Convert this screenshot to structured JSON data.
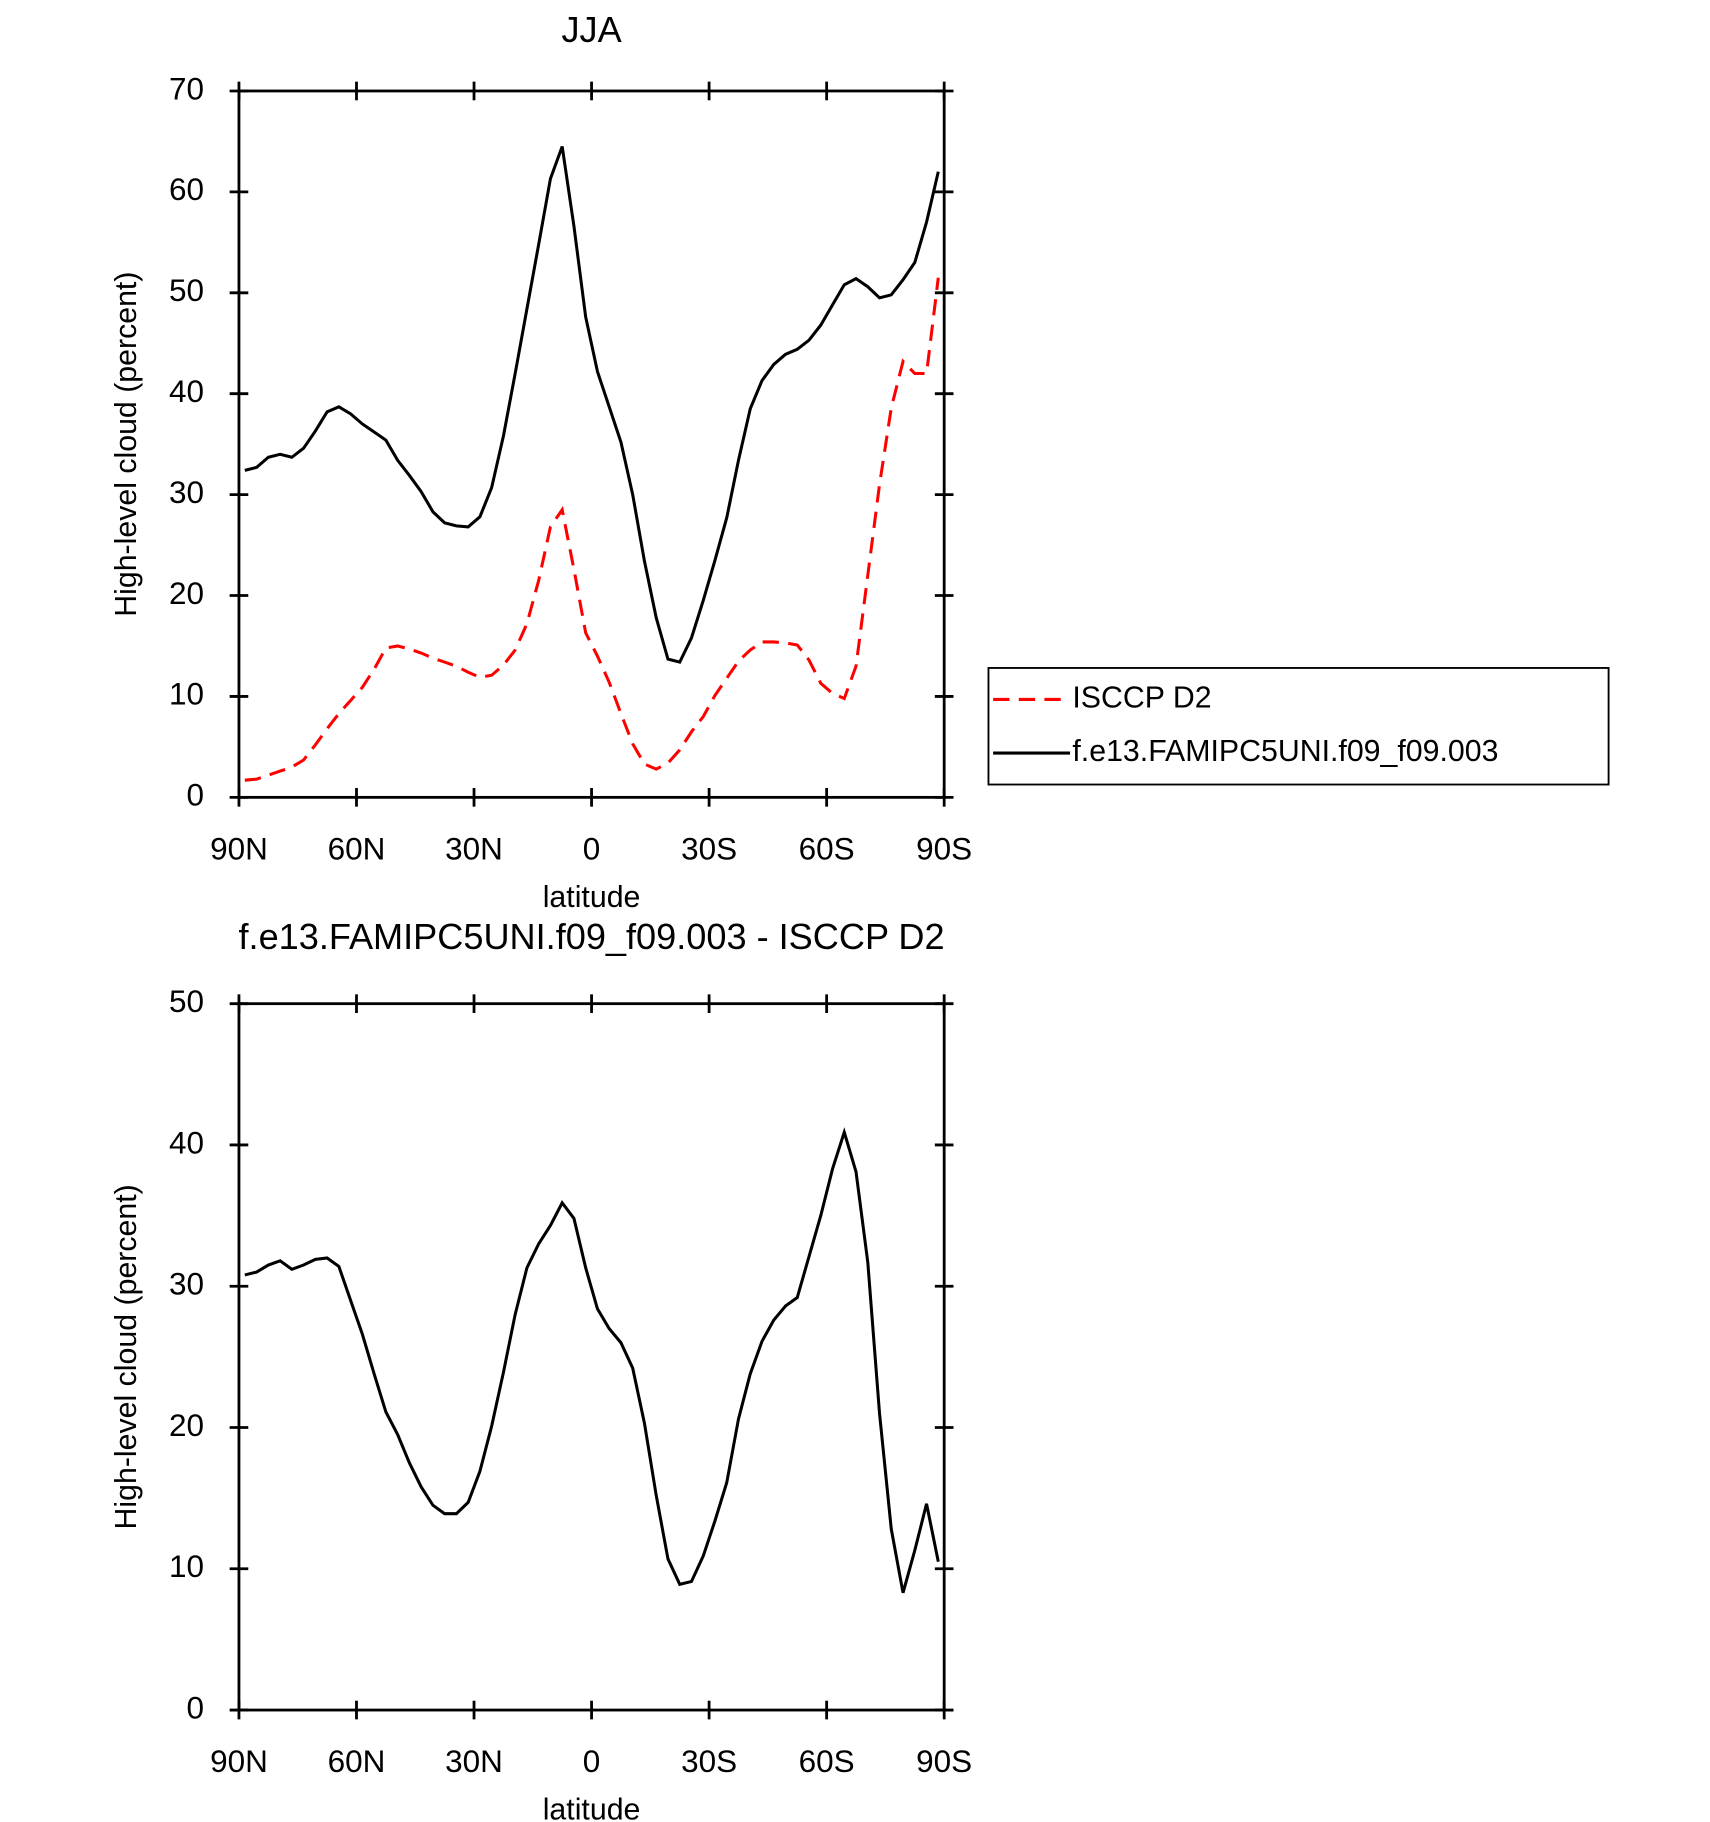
{
  "chart_data": [
    {
      "type": "line",
      "title": "JJA",
      "xlabel": "latitude",
      "ylabel": "High-level cloud (percent)",
      "x": [
        88.5,
        85.5,
        82.5,
        79.5,
        76.5,
        73.5,
        70.5,
        67.5,
        64.5,
        61.5,
        58.5,
        55.5,
        52.5,
        49.5,
        46.5,
        43.5,
        40.5,
        37.5,
        34.5,
        31.5,
        28.5,
        25.5,
        22.5,
        19.5,
        16.5,
        13.5,
        10.5,
        7.5,
        4.5,
        1.5,
        -1.5,
        -4.5,
        -7.5,
        -10.5,
        -13.5,
        -16.5,
        -19.5,
        -22.5,
        -25.5,
        -28.5,
        -31.5,
        -34.5,
        -37.5,
        -40.5,
        -43.5,
        -46.5,
        -49.5,
        -52.5,
        -55.5,
        -58.5,
        -61.5,
        -64.5,
        -67.5,
        -70.5,
        -73.5,
        -76.5,
        -79.5,
        -82.5,
        -85.5,
        -88.5
      ],
      "series": [
        {
          "name": "ISCCP D2",
          "color": "#ff0000",
          "linestyle": "dashed",
          "values": [
            1.7,
            1.8,
            2.2,
            2.6,
            3.0,
            3.7,
            5.2,
            6.8,
            8.3,
            9.6,
            10.9,
            12.7,
            14.8,
            15.0,
            14.7,
            14.3,
            13.8,
            13.4,
            13.0,
            12.4,
            11.9,
            12.1,
            13.1,
            14.6,
            17.2,
            21.5,
            26.8,
            28.5,
            22.6,
            16.3,
            14.0,
            11.4,
            8.3,
            5.3,
            3.3,
            2.8,
            3.4,
            4.7,
            6.5,
            8.0,
            10.1,
            11.8,
            13.5,
            14.6,
            15.4,
            15.4,
            15.3,
            15.1,
            13.6,
            11.3,
            10.3,
            9.8,
            13.0,
            22.0,
            31.0,
            38.6,
            43.2,
            42.0,
            42.0,
            51.5
          ]
        },
        {
          "name": "f.e13.FAMIPC5UNI.f09_f09.003",
          "color": "#000000",
          "linestyle": "solid",
          "values": [
            32.4,
            32.7,
            33.7,
            34.0,
            33.7,
            34.6,
            36.3,
            38.2,
            38.7,
            38.0,
            37.0,
            36.2,
            35.4,
            33.4,
            31.9,
            30.3,
            28.3,
            27.2,
            26.9,
            26.8,
            27.8,
            30.7,
            35.8,
            42.0,
            48.4,
            54.8,
            61.3,
            64.5,
            56.6,
            47.6,
            42.2,
            38.7,
            35.2,
            30.0,
            23.4,
            17.8,
            13.7,
            13.4,
            15.8,
            19.5,
            23.5,
            27.7,
            33.4,
            38.5,
            41.3,
            42.9,
            43.9,
            44.4,
            45.3,
            46.8,
            48.8,
            50.8,
            51.4,
            50.6,
            49.5,
            49.8,
            51.3,
            53.0,
            57.0,
            62.0
          ]
        }
      ],
      "xlim": [
        90,
        -90
      ],
      "xticks": [
        {
          "value": 90,
          "label": "90N"
        },
        {
          "value": 60,
          "label": "60N"
        },
        {
          "value": 30,
          "label": "30N"
        },
        0,
        {
          "value": -30,
          "label": "30S"
        },
        {
          "value": -60,
          "label": "60S"
        },
        {
          "value": -90,
          "label": "90S"
        }
      ],
      "ylim": [
        0,
        70
      ],
      "yticks": [
        0,
        10,
        20,
        30,
        40,
        50,
        60,
        70
      ],
      "legend": "right"
    },
    {
      "type": "line",
      "title": "f.e13.FAMIPC5UNI.f09_f09.003 - ISCCP D2",
      "xlabel": "latitude",
      "ylabel": "High-level cloud (percent)",
      "x": [
        88.5,
        85.5,
        82.5,
        79.5,
        76.5,
        73.5,
        70.5,
        67.5,
        64.5,
        61.5,
        58.5,
        55.5,
        52.5,
        49.5,
        46.5,
        43.5,
        40.5,
        37.5,
        34.5,
        31.5,
        28.5,
        25.5,
        22.5,
        19.5,
        16.5,
        13.5,
        10.5,
        7.5,
        4.5,
        1.5,
        -1.5,
        -4.5,
        -7.5,
        -10.5,
        -13.5,
        -16.5,
        -19.5,
        -22.5,
        -25.5,
        -28.5,
        -31.5,
        -34.5,
        -37.5,
        -40.5,
        -43.5,
        -46.5,
        -49.5,
        -52.5,
        -55.5,
        -58.5,
        -61.5,
        -64.5,
        -67.5,
        -70.5,
        -73.5,
        -76.5,
        -79.5,
        -82.5,
        -85.5,
        -88.5
      ],
      "values": [
        30.8,
        31.0,
        31.5,
        31.8,
        31.2,
        31.5,
        31.9,
        32.0,
        31.4,
        29.0,
        26.6,
        23.8,
        21.1,
        19.5,
        17.5,
        15.8,
        14.5,
        13.9,
        13.9,
        14.7,
        16.9,
        20.1,
        23.9,
        28.0,
        31.3,
        33.0,
        34.3,
        35.9,
        34.8,
        31.3,
        28.4,
        27.0,
        26.0,
        24.2,
        20.3,
        15.2,
        10.7,
        8.9,
        9.1,
        10.9,
        13.4,
        16.1,
        20.6,
        23.8,
        26.1,
        27.6,
        28.6,
        29.2,
        32.1,
        35.0,
        38.3,
        40.9,
        38.1,
        31.7,
        21.0,
        12.8,
        8.3,
        11.3,
        14.6,
        10.5
      ],
      "color": "#000000",
      "xlim": [
        90,
        -90
      ],
      "xticks": [
        {
          "value": 90,
          "label": "90N"
        },
        {
          "value": 60,
          "label": "60N"
        },
        {
          "value": 30,
          "label": "30N"
        },
        0,
        {
          "value": -30,
          "label": "30S"
        },
        {
          "value": -60,
          "label": "60S"
        },
        {
          "value": -90,
          "label": "90S"
        }
      ],
      "ylim": [
        0,
        50
      ],
      "yticks": [
        0,
        10,
        20,
        30,
        40,
        50
      ]
    }
  ]
}
